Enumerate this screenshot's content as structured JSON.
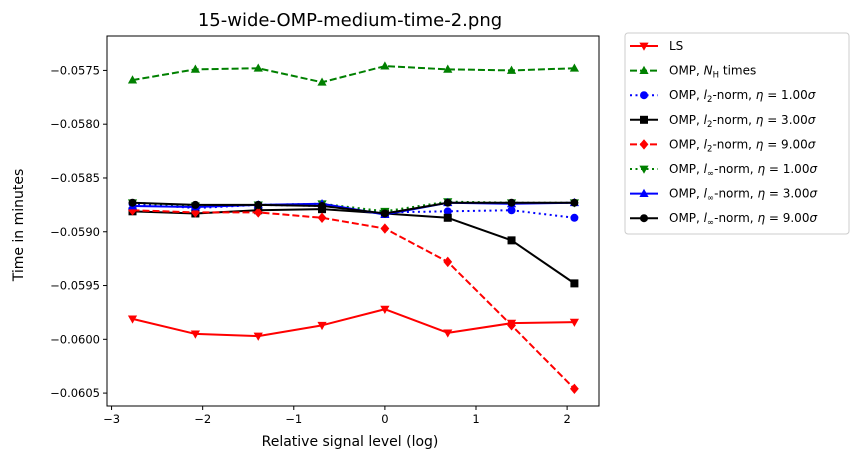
{
  "chart_data": {
    "type": "line",
    "title": "15-wide-OMP-medium-time-2.png",
    "xlabel": "Relative signal level (log)",
    "ylabel": "Time in minutes",
    "xlim": [
      -3.05,
      2.35
    ],
    "ylim": [
      -0.06062,
      -0.05718
    ],
    "xticks": [
      -3,
      -2,
      -1,
      0,
      1,
      2
    ],
    "xtick_labels": [
      "−3",
      "−2",
      "−1",
      "0",
      "1",
      "2"
    ],
    "yticks": [
      -0.0575,
      -0.058,
      -0.0585,
      -0.059,
      -0.0595,
      -0.06,
      -0.0605
    ],
    "ytick_labels": [
      "−0.0575",
      "−0.0580",
      "−0.0585",
      "−0.0590",
      "−0.0595",
      "−0.0600",
      "−0.0605"
    ],
    "grid": false,
    "legend_position": "outside-right",
    "x": [
      -2.77,
      -2.08,
      -1.39,
      -0.69,
      0.0,
      0.69,
      1.39,
      2.08
    ],
    "series": [
      {
        "name": "LS",
        "legend": {
          "pre": "LS"
        },
        "color": "#ff0000",
        "dash": "solid",
        "marker": "triangle-down",
        "values": [
          -0.05981,
          -0.05995,
          -0.05997,
          -0.05987,
          -0.05972,
          -0.05994,
          -0.05985,
          -0.05984
        ]
      },
      {
        "name": "OMP, N_H times",
        "legend": {
          "pre": "OMP, ",
          "math": "N",
          "sub": "H",
          "post": " times"
        },
        "color": "#008000",
        "dash": "dashed",
        "marker": "triangle-up",
        "values": [
          -0.05759,
          -0.05749,
          -0.05748,
          -0.05761,
          -0.05746,
          -0.05749,
          -0.0575,
          -0.05748
        ]
      },
      {
        "name": "OMP, l_2-norm, η = 1.00σ",
        "legend": {
          "pre": "OMP, ",
          "math": "l",
          "sub": "2",
          "post": "-norm, ",
          "eta": "η",
          "val": " = 1.00",
          "sigma": "σ"
        },
        "color": "#0000ff",
        "dash": "dotted",
        "marker": "circle",
        "values": [
          -0.05874,
          -0.05878,
          -0.05875,
          -0.05876,
          -0.05882,
          -0.05881,
          -0.0588,
          -0.05887
        ]
      },
      {
        "name": "OMP, l_2-norm, η = 3.00σ",
        "legend": {
          "pre": "OMP, ",
          "math": "l",
          "sub": "2",
          "post": "-norm, ",
          "eta": "η",
          "val": " = 3.00",
          "sigma": "σ"
        },
        "color": "#000000",
        "dash": "solid",
        "marker": "square",
        "values": [
          -0.05881,
          -0.05883,
          -0.0588,
          -0.05879,
          -0.05883,
          -0.05887,
          -0.05908,
          -0.05948
        ]
      },
      {
        "name": "OMP, l_2-norm, η = 9.00σ",
        "legend": {
          "pre": "OMP, ",
          "math": "l",
          "sub": "2",
          "post": "-norm, ",
          "eta": "η",
          "val": " = 9.00",
          "sigma": "σ"
        },
        "color": "#ff0000",
        "dash": "dashed",
        "marker": "diamond",
        "values": [
          -0.0588,
          -0.05882,
          -0.05882,
          -0.05887,
          -0.05897,
          -0.05928,
          -0.05987,
          -0.06046
        ]
      },
      {
        "name": "OMP, l_∞-norm, η = 1.00σ",
        "legend": {
          "pre": "OMP, ",
          "math": "l",
          "sub": "∞",
          "post": "-norm, ",
          "eta": "η",
          "val": " = 1.00",
          "sigma": "σ"
        },
        "color": "#008000",
        "dash": "dotted",
        "marker": "triangle-down",
        "values": [
          -0.05873,
          -0.05876,
          -0.05875,
          -0.05874,
          -0.05881,
          -0.05872,
          -0.05873,
          -0.05873
        ]
      },
      {
        "name": "OMP, l_∞-norm, η = 3.00σ",
        "legend": {
          "pre": "OMP, ",
          "math": "l",
          "sub": "∞",
          "post": "-norm, ",
          "eta": "η",
          "val": " = 3.00",
          "sigma": "σ"
        },
        "color": "#0000ff",
        "dash": "solid",
        "marker": "triangle-up",
        "values": [
          -0.05876,
          -0.05877,
          -0.05875,
          -0.05874,
          -0.05884,
          -0.05873,
          -0.05874,
          -0.05873
        ]
      },
      {
        "name": "OMP, l_∞-norm, η = 9.00σ",
        "legend": {
          "pre": "OMP, ",
          "math": "l",
          "sub": "∞",
          "post": "-norm, ",
          "eta": "η",
          "val": " = 9.00",
          "sigma": "σ"
        },
        "color": "#000000",
        "dash": "solid",
        "marker": "circle",
        "values": [
          -0.05873,
          -0.05875,
          -0.05875,
          -0.05876,
          -0.05883,
          -0.05873,
          -0.05873,
          -0.05873
        ]
      }
    ]
  }
}
